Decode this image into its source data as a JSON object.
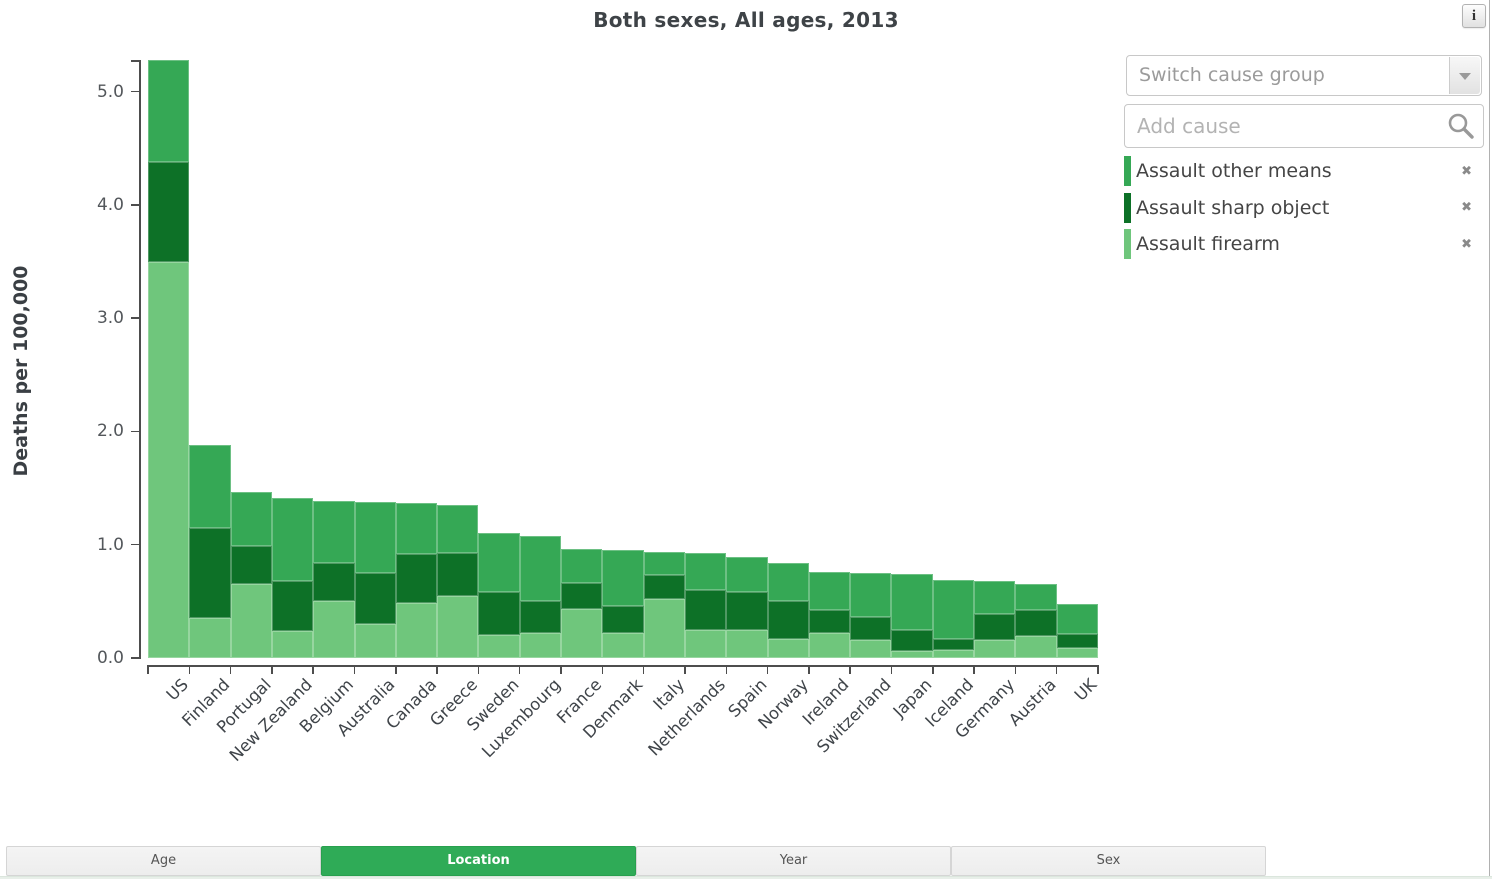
{
  "title": "Both sexes, All ages, 2013",
  "info_button_label": "i",
  "y_axis": {
    "label": "Deaths per 100,000",
    "tick_labels": [
      "0.0",
      "1.0",
      "2.0",
      "3.0",
      "4.0",
      "5.0"
    ]
  },
  "chart_data": {
    "type": "bar",
    "stacked": true,
    "title": "Both sexes, All ages, 2013",
    "ylabel": "Deaths per 100,000",
    "ylim": [
      0,
      5.3
    ],
    "y_ticks": [
      0,
      1,
      2,
      3,
      4,
      5
    ],
    "grid": false,
    "legend_position": "right",
    "categories": [
      "US",
      "Finland",
      "Portugal",
      "New Zealand",
      "Belgium",
      "Australia",
      "Canada",
      "Greece",
      "Sweden",
      "Luxembourg",
      "France",
      "Denmark",
      "Italy",
      "Netherlands",
      "Spain",
      "Norway",
      "Ireland",
      "Switzerland",
      "Japan",
      "Iceland",
      "Germany",
      "Austria",
      "UK"
    ],
    "series": [
      {
        "name": "Assault firearm",
        "color": "#6fc67c",
        "values": [
          3.5,
          0.35,
          0.65,
          0.24,
          0.5,
          0.3,
          0.49,
          0.55,
          0.2,
          0.22,
          0.43,
          0.22,
          0.52,
          0.25,
          0.25,
          0.17,
          0.22,
          0.16,
          0.06,
          0.07,
          0.16,
          0.19,
          0.09
        ]
      },
      {
        "name": "Assault sharp object",
        "color": "#0d7127",
        "values": [
          0.88,
          0.8,
          0.34,
          0.44,
          0.34,
          0.45,
          0.43,
          0.38,
          0.38,
          0.28,
          0.23,
          0.24,
          0.21,
          0.35,
          0.33,
          0.33,
          0.2,
          0.2,
          0.19,
          0.1,
          0.23,
          0.23,
          0.12
        ]
      },
      {
        "name": "Assault other means",
        "color": "#35a855",
        "values": [
          0.9,
          0.73,
          0.48,
          0.73,
          0.55,
          0.63,
          0.45,
          0.42,
          0.52,
          0.58,
          0.3,
          0.49,
          0.21,
          0.33,
          0.31,
          0.34,
          0.34,
          0.39,
          0.49,
          0.52,
          0.29,
          0.23,
          0.27
        ]
      }
    ]
  },
  "controls": {
    "switch_cause_group_label": "Switch cause group",
    "add_cause_placeholder": "Add cause",
    "remove_icon_glyph": "✖",
    "legend": [
      {
        "label": "Assault other means",
        "color": "#35a855"
      },
      {
        "label": "Assault sharp object",
        "color": "#0d7127"
      },
      {
        "label": "Assault firearm",
        "color": "#6fc67c"
      }
    ]
  },
  "tabs": [
    {
      "label": "Age",
      "active": false
    },
    {
      "label": "Location",
      "active": true
    },
    {
      "label": "Year",
      "active": false
    },
    {
      "label": "Sex",
      "active": false
    }
  ],
  "colors": {
    "accent": "#2fab57",
    "assault_firearm": "#6fc67c",
    "assault_sharp_object": "#0d7127",
    "assault_other_means": "#35a855"
  }
}
